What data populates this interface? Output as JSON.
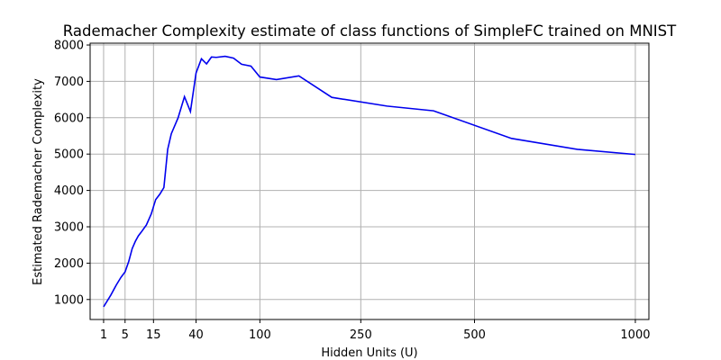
{
  "chart_data": {
    "type": "line",
    "title": "Rademacher Complexity estimate of class functions of SimpleFC trained on MNIST",
    "xlabel": "Hidden Units (U)",
    "ylabel": "Estimated Rademacher Complexity",
    "x_scale": "sqrt",
    "xlim": [
      0.05,
      1050
    ],
    "ylim": [
      450,
      8050
    ],
    "x_ticks": [
      1,
      5,
      15,
      40,
      100,
      250,
      500,
      1000
    ],
    "x_tick_labels": [
      "1",
      "5",
      "15",
      "40",
      "100",
      "250",
      "500",
      "1000"
    ],
    "y_ticks": [
      1000,
      2000,
      3000,
      4000,
      5000,
      6000,
      7000,
      8000
    ],
    "y_tick_labels": [
      "1000",
      "2000",
      "3000",
      "4000",
      "5000",
      "6000",
      "7000",
      "8000"
    ],
    "grid": true,
    "line_color": "#0000ee",
    "series": [
      {
        "x": [
          1,
          2,
          3,
          4,
          5,
          6,
          7,
          8,
          9,
          10,
          12,
          14,
          16,
          18,
          20,
          22,
          24,
          28,
          32,
          36,
          40,
          44,
          48,
          52,
          56,
          64,
          72,
          80,
          90,
          100,
          120,
          150,
          200,
          300,
          400,
          600,
          800,
          1000
        ],
        "y": [
          800,
          1120,
          1400,
          1610,
          1760,
          2050,
          2400,
          2600,
          2750,
          2850,
          3050,
          3350,
          3750,
          3900,
          4080,
          5130,
          5560,
          6000,
          6580,
          6170,
          7230,
          7620,
          7480,
          7670,
          7660,
          7690,
          7640,
          7470,
          7420,
          7120,
          7050,
          7150,
          6560,
          6320,
          6190,
          5430,
          5130,
          4990
        ]
      }
    ]
  }
}
